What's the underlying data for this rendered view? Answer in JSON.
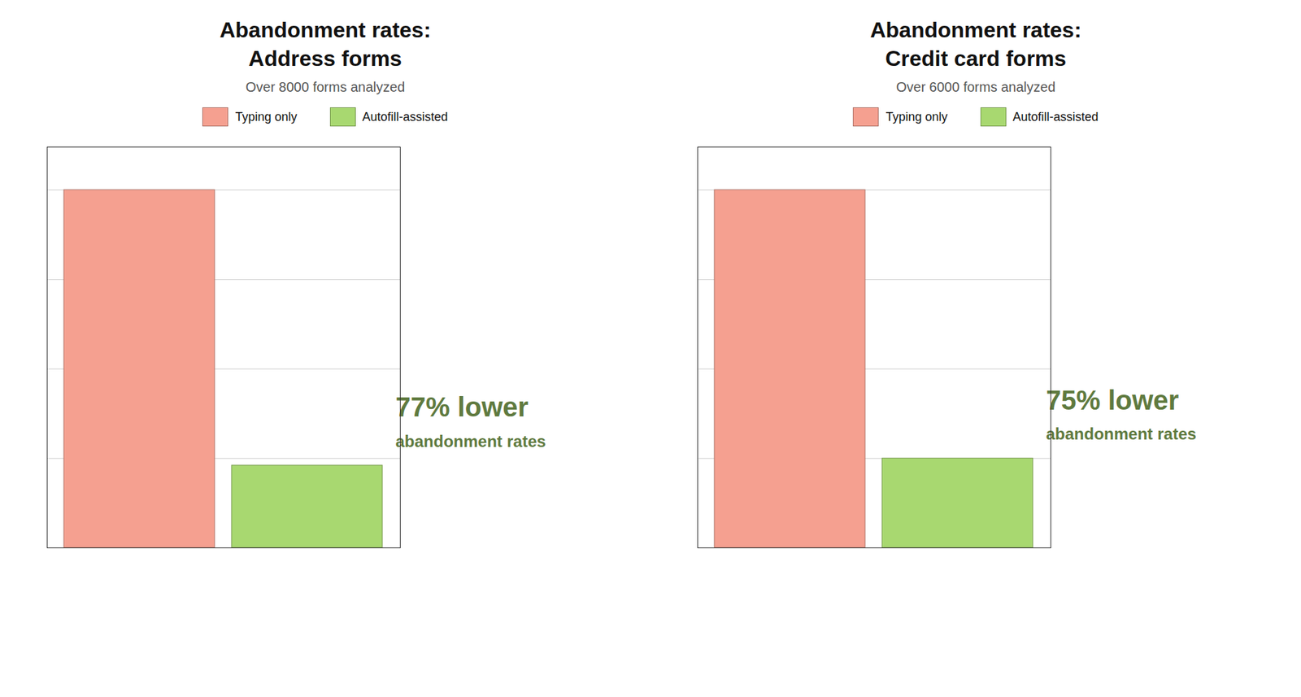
{
  "chart_data": [
    {
      "type": "bar",
      "title": "Abandonment rates:\nAddress forms",
      "subtitle": "Over 8000 forms analyzed",
      "categories": [
        "Typing only",
        "Autofill-assisted"
      ],
      "values": [
        1.0,
        0.23
      ],
      "colors": [
        "#F5A090",
        "#A8D870"
      ],
      "annotations": [
        "77% lower",
        "abandonment rates"
      ],
      "ylim": [
        0,
        1.12
      ],
      "yticks": [
        0,
        0.25,
        0.5,
        0.75,
        1.0
      ],
      "grid": true,
      "legend": "top",
      "tick_labels": false
    },
    {
      "type": "bar",
      "title": "Abandonment rates:\nCredit card forms",
      "subtitle": "Over 6000 forms analyzed",
      "categories": [
        "Typing only",
        "Autofill-assisted"
      ],
      "values": [
        1.0,
        0.25
      ],
      "colors": [
        "#F5A090",
        "#A8D870"
      ],
      "annotations": [
        "75% lower",
        "abandonment rates"
      ],
      "ylim": [
        0,
        1.12
      ],
      "yticks": [
        0,
        0.25,
        0.5,
        0.75,
        1.0
      ],
      "grid": true,
      "legend": "top",
      "tick_labels": false
    }
  ]
}
